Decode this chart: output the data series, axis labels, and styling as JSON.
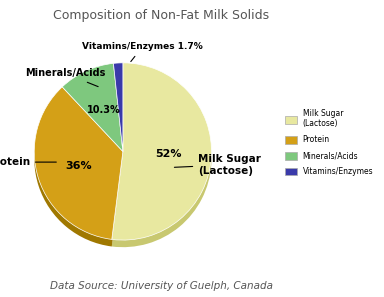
{
  "title": "Composition of Non-Fat Milk Solids",
  "source": "Data Source: University of Guelph, Canada",
  "slices": [
    52,
    36,
    10.3,
    1.7
  ],
  "pct_labels": [
    "52%",
    "36%",
    "10.3%",
    ""
  ],
  "colors": [
    "#e8e8a0",
    "#d4a017",
    "#7ec87e",
    "#3a3aaa"
  ],
  "shadow_colors": [
    "#c8c870",
    "#a07800",
    "#50a050",
    "#222288"
  ],
  "legend_labels": [
    "Milk Sugar\n(Lactose)",
    "Protein",
    "Minerals/Acids",
    "Vitamins/Enzymes"
  ],
  "title_fontsize": 9,
  "source_fontsize": 7.5,
  "startangle": 90
}
